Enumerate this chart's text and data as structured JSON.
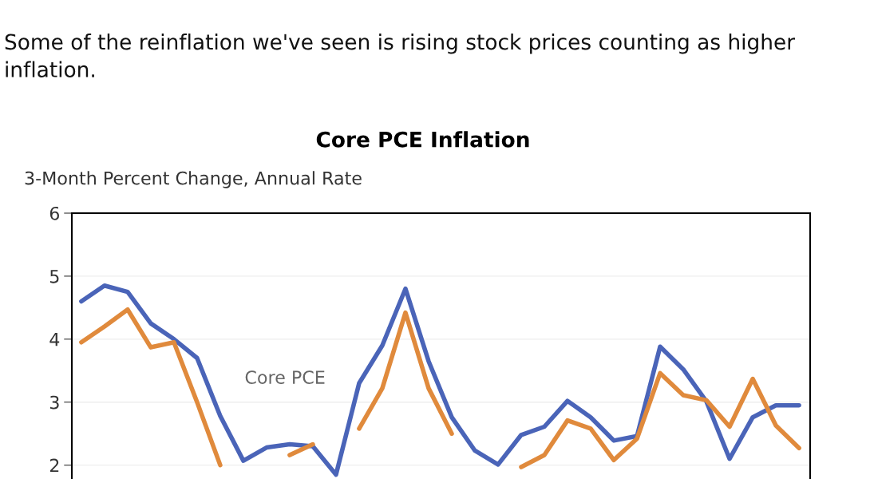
{
  "chart_data": {
    "type": "line",
    "title": "Core PCE Inflation",
    "ylabel": "3-Month Percent Change, Annual Rate",
    "annotations": [
      "Some of the reinflation we've seen is rising stock prices counting as higher inflation."
    ],
    "categories": [
      null,
      null,
      null,
      null,
      null,
      null,
      null,
      null,
      null,
      null,
      null,
      null,
      null,
      null,
      null,
      null,
      null,
      null,
      null,
      null,
      null,
      null,
      null,
      null,
      null,
      null,
      null,
      null,
      null,
      null,
      null,
      null
    ],
    "series": [
      {
        "name": "Core PCE",
        "color": "#4a64b8",
        "values": [
          4.6,
          4.85,
          4.75,
          4.25,
          4.0,
          3.7,
          2.78,
          2.07,
          2.28,
          2.33,
          2.3,
          1.85,
          3.3,
          3.9,
          4.8,
          3.65,
          2.76,
          2.23,
          2.01,
          2.48,
          2.61,
          3.02,
          2.76,
          2.39,
          2.46,
          3.88,
          3.52,
          3.01,
          2.1,
          2.76,
          2.95,
          2.95
        ]
      },
      {
        "color": "#e08a3c",
        "values": [
          3.95,
          4.2,
          4.47,
          3.87,
          3.95,
          3.0,
          2.0,
          null,
          null,
          2.16,
          2.33,
          null,
          2.58,
          3.22,
          4.42,
          3.22,
          2.5,
          null,
          null,
          1.97,
          2.16,
          2.71,
          2.58,
          2.08,
          2.42,
          3.46,
          3.11,
          3.03,
          2.61,
          3.37,
          2.63,
          2.27
        ]
      }
    ],
    "ylim": [
      1.78,
      6
    ],
    "yticks": [
      2,
      3,
      4,
      5,
      6
    ],
    "grid": "y",
    "legend": false,
    "marker": "none",
    "line_style": "solid"
  }
}
